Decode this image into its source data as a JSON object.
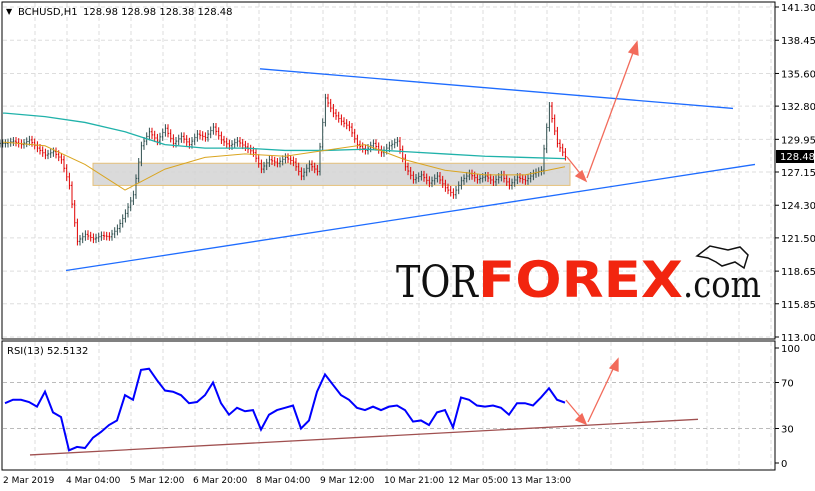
{
  "header": {
    "symbol": "BCHUSD,H1",
    "ohlc": "128.98 128.98 128.38 128.48"
  },
  "rsi_label": "RSI(13) 52.5132",
  "logo": {
    "part1": "TOR",
    "part2": "FOREX",
    "part3": ".com"
  },
  "colors": {
    "bull_bar": "#2f4f4f",
    "bear_bar": "#e00000",
    "ma_slow": "#20b2aa",
    "ma_fast": "#daa520",
    "trendline": "#1e6cff",
    "rsi": "#0000ff",
    "rsi_trend": "#a05050",
    "arrow": "#f26b5b",
    "zone_fill": "#d3d3d3",
    "zone_border": "#e5c07b"
  },
  "chart_data": [
    {
      "type": "bar",
      "title": "BCHUSD,H1",
      "ylim": [
        113.0,
        141.3
      ],
      "y_ticks": [
        "141.30",
        "138.45",
        "135.60",
        "132.80",
        "129.95",
        "127.15",
        "124.30",
        "121.50",
        "118.65",
        "115.85",
        "113.00"
      ],
      "current_price": "128.48",
      "x_ticks": [
        "2 Mar 2019",
        "4 Mar 04:00",
        "5 Mar 12:00",
        "6 Mar 20:00",
        "8 Mar 04:00",
        "9 Mar 12:00",
        "10 Mar 21:00",
        "12 Mar 05:00",
        "13 Mar 13:00"
      ],
      "grid": true,
      "closes": [
        129.6,
        129.8,
        129.5,
        129.9,
        129.2,
        128.6,
        128.9,
        128.2,
        126.0,
        121.2,
        121.8,
        121.4,
        121.7,
        121.6,
        122.3,
        123.6,
        125.2,
        129.4,
        130.6,
        129.8,
        130.9,
        129.6,
        130.2,
        129.5,
        130.4,
        130.1,
        131.0,
        129.9,
        129.4,
        129.8,
        129.3,
        128.8,
        127.4,
        128.2,
        127.9,
        128.4,
        128.0,
        126.8,
        127.8,
        127.2,
        133.5,
        132.2,
        131.5,
        131.0,
        129.5,
        129.0,
        129.6,
        128.8,
        129.4,
        129.8,
        127.6,
        126.5,
        126.9,
        126.2,
        126.8,
        125.8,
        125.2,
        126.4,
        127.0,
        126.5,
        126.8,
        126.3,
        126.9,
        126.0,
        126.7,
        126.4,
        127.0,
        127.3,
        132.8,
        129.6,
        128.48
      ],
      "ma_slow": [
        132.2,
        131.9,
        131.4,
        130.6,
        129.5,
        129.2,
        129.2,
        129.0,
        129.0,
        129.1,
        128.9,
        128.7,
        128.5,
        128.4,
        128.3
      ],
      "ma_fast": [
        129.7,
        129.4,
        127.8,
        125.6,
        127.4,
        128.4,
        128.7,
        128.5,
        129.0,
        129.5,
        128.2,
        127.3,
        126.9,
        126.9,
        127.6
      ],
      "support_zone": [
        126.0,
        127.9
      ],
      "upper_trendline": [
        136.0,
        132.6
      ],
      "lower_trendline": [
        118.7,
        127.8
      ]
    },
    {
      "type": "line",
      "title": "RSI(13) 52.5132",
      "ylim": [
        0,
        100
      ],
      "y_ticks": [
        "100",
        "70",
        "30",
        "0"
      ],
      "values": [
        52,
        55,
        55,
        53,
        49,
        62,
        44,
        40,
        11,
        14,
        13,
        22,
        27,
        33,
        37,
        59,
        55,
        81,
        82,
        72,
        63,
        62,
        59,
        52,
        53,
        59,
        70,
        52,
        42,
        48,
        45,
        46,
        29,
        42,
        46,
        48,
        50,
        30,
        37,
        62,
        77,
        68,
        59,
        55,
        48,
        46,
        49,
        46,
        49,
        50,
        46,
        36,
        37,
        33,
        44,
        46,
        31,
        57,
        55,
        50,
        49,
        50,
        48,
        42,
        52,
        52,
        50,
        57,
        65,
        55,
        52.5
      ],
      "trendline": [
        7,
        38
      ]
    }
  ]
}
